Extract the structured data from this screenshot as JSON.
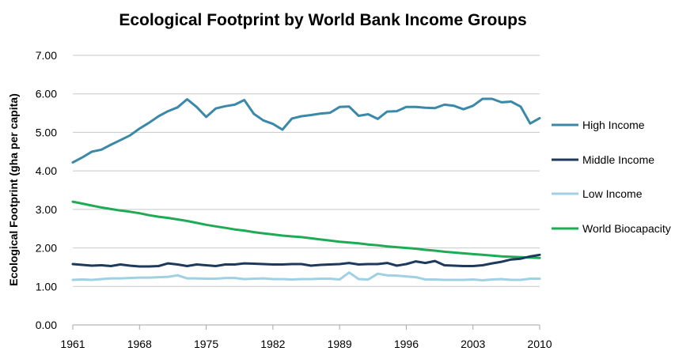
{
  "chart_data": {
    "type": "line",
    "title": "Ecological Footprint by World Bank Income Groups",
    "xlabel": "",
    "ylabel": "Ecological Footprint (gha per capita)",
    "xlim": [
      1961,
      2010
    ],
    "ylim": [
      0,
      7
    ],
    "x_ticks": [
      "1961",
      "1968",
      "1975",
      "1982",
      "1989",
      "1996",
      "2003",
      "2010"
    ],
    "y_ticks": [
      "0.00",
      "1.00",
      "2.00",
      "3.00",
      "4.00",
      "5.00",
      "6.00",
      "7.00"
    ],
    "grid": "horizontal",
    "legend_position": "right",
    "x": [
      1961,
      1962,
      1963,
      1964,
      1965,
      1966,
      1967,
      1968,
      1969,
      1970,
      1971,
      1972,
      1973,
      1974,
      1975,
      1976,
      1977,
      1978,
      1979,
      1980,
      1981,
      1982,
      1983,
      1984,
      1985,
      1986,
      1987,
      1988,
      1989,
      1990,
      1991,
      1992,
      1993,
      1994,
      1995,
      1996,
      1997,
      1998,
      1999,
      2000,
      2001,
      2002,
      2003,
      2004,
      2005,
      2006,
      2007,
      2008,
      2009,
      2010
    ],
    "series": [
      {
        "name": "High Income",
        "color": "#3a89a8",
        "values": [
          4.22,
          4.35,
          4.5,
          4.55,
          4.68,
          4.8,
          4.92,
          5.1,
          5.25,
          5.42,
          5.55,
          5.65,
          5.86,
          5.66,
          5.4,
          5.62,
          5.68,
          5.72,
          5.84,
          5.48,
          5.31,
          5.22,
          5.07,
          5.36,
          5.42,
          5.45,
          5.49,
          5.51,
          5.66,
          5.67,
          5.43,
          5.47,
          5.35,
          5.54,
          5.55,
          5.66,
          5.66,
          5.64,
          5.63,
          5.72,
          5.69,
          5.6,
          5.69,
          5.87,
          5.87,
          5.78,
          5.8,
          5.67,
          5.23,
          5.37
        ]
      },
      {
        "name": "Middle Income",
        "color": "#1d3a5c",
        "values": [
          1.58,
          1.56,
          1.54,
          1.55,
          1.53,
          1.57,
          1.54,
          1.52,
          1.52,
          1.53,
          1.6,
          1.57,
          1.53,
          1.57,
          1.55,
          1.53,
          1.57,
          1.57,
          1.6,
          1.59,
          1.58,
          1.57,
          1.57,
          1.58,
          1.58,
          1.54,
          1.56,
          1.57,
          1.58,
          1.61,
          1.57,
          1.58,
          1.58,
          1.61,
          1.54,
          1.58,
          1.65,
          1.61,
          1.66,
          1.55,
          1.54,
          1.53,
          1.53,
          1.55,
          1.6,
          1.64,
          1.7,
          1.72,
          1.78,
          1.82
        ]
      },
      {
        "name": "Low Income",
        "color": "#9fd0e3",
        "values": [
          1.17,
          1.18,
          1.17,
          1.19,
          1.21,
          1.21,
          1.22,
          1.23,
          1.23,
          1.24,
          1.25,
          1.29,
          1.21,
          1.21,
          1.2,
          1.2,
          1.22,
          1.22,
          1.19,
          1.2,
          1.21,
          1.19,
          1.19,
          1.18,
          1.19,
          1.19,
          1.2,
          1.2,
          1.18,
          1.36,
          1.19,
          1.18,
          1.33,
          1.29,
          1.28,
          1.26,
          1.24,
          1.18,
          1.18,
          1.17,
          1.17,
          1.17,
          1.18,
          1.16,
          1.18,
          1.19,
          1.17,
          1.17,
          1.2,
          1.2
        ]
      },
      {
        "name": "World Biocapacity",
        "color": "#1fab55",
        "values": [
          3.2,
          3.15,
          3.1,
          3.05,
          3.01,
          2.97,
          2.94,
          2.9,
          2.85,
          2.81,
          2.78,
          2.74,
          2.7,
          2.65,
          2.6,
          2.56,
          2.52,
          2.48,
          2.45,
          2.41,
          2.38,
          2.35,
          2.32,
          2.3,
          2.28,
          2.25,
          2.22,
          2.19,
          2.16,
          2.14,
          2.12,
          2.09,
          2.07,
          2.04,
          2.02,
          2.0,
          1.98,
          1.95,
          1.93,
          1.9,
          1.88,
          1.86,
          1.84,
          1.82,
          1.8,
          1.78,
          1.77,
          1.76,
          1.75,
          1.74
        ]
      }
    ]
  }
}
